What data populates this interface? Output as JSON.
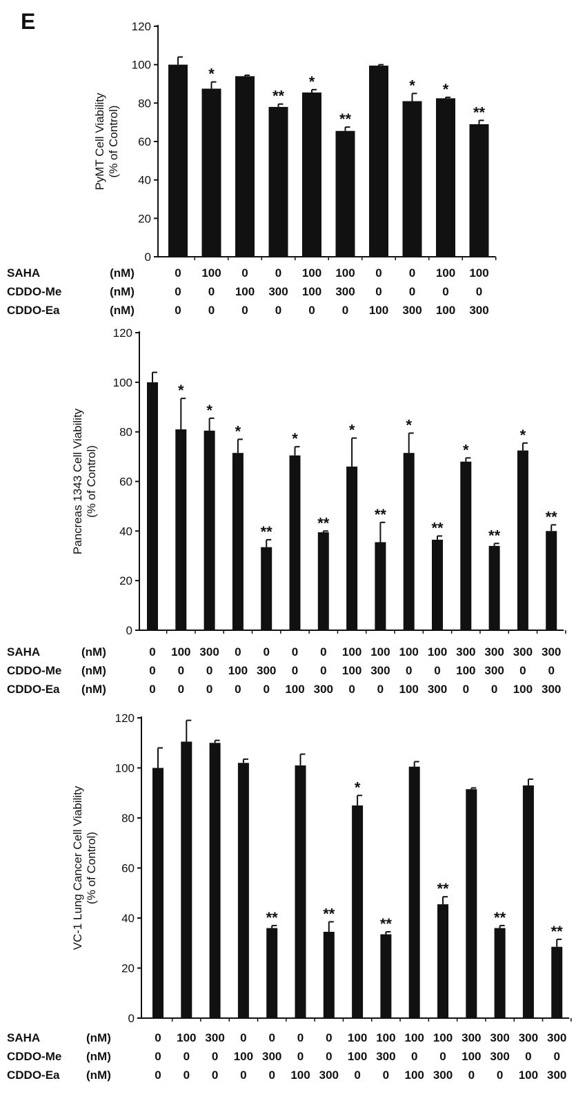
{
  "panel_label": "E",
  "chart_data": [
    {
      "type": "bar",
      "ylabel": "PyMT Cell Viability",
      "ylabel_unit": "(% of Control)",
      "ylim": [
        0,
        120
      ],
      "yticks": [
        "0",
        "20",
        "40",
        "60",
        "80",
        "100",
        "120"
      ],
      "values": [
        100,
        87.5,
        94,
        78,
        85.5,
        65.5,
        99.5,
        81,
        82.5,
        69
      ],
      "errors": [
        4,
        3.5,
        0.5,
        1.5,
        1.5,
        2,
        0.5,
        4,
        0.5,
        2
      ],
      "significance": [
        "",
        "*",
        "",
        "**",
        "*",
        "**",
        "",
        "*",
        "*",
        "**"
      ],
      "conditions": [
        {
          "name": "SAHA",
          "unit": "(nM)",
          "values": [
            "0",
            "100",
            "0",
            "0",
            "100",
            "100",
            "0",
            "0",
            "100",
            "100"
          ]
        },
        {
          "name": "CDDO-Me",
          "unit": "(nM)",
          "values": [
            "0",
            "0",
            "100",
            "300",
            "100",
            "300",
            "0",
            "0",
            "0",
            "0"
          ]
        },
        {
          "name": "CDDO-Ea",
          "unit": "(nM)",
          "values": [
            "0",
            "0",
            "0",
            "0",
            "0",
            "0",
            "100",
            "300",
            "100",
            "300"
          ]
        }
      ]
    },
    {
      "type": "bar",
      "ylabel": "Pancreas 1343 Cell Viability",
      "ylabel_unit": "(% of Control)",
      "ylim": [
        0,
        120
      ],
      "yticks": [
        "0",
        "20",
        "40",
        "60",
        "80",
        "100",
        "120"
      ],
      "values": [
        100,
        81,
        80.5,
        71.5,
        33.5,
        70.5,
        39.5,
        66,
        35.5,
        71.5,
        36.5,
        68,
        34,
        72.5,
        40
      ],
      "errors": [
        4,
        12.5,
        5,
        5.5,
        3,
        3.5,
        0.5,
        11.5,
        8,
        8,
        1.5,
        1.5,
        1,
        3,
        2.5
      ],
      "significance": [
        "",
        "*",
        "*",
        "*",
        "**",
        "*",
        "**",
        "*",
        "**",
        "*",
        "**",
        "*",
        "**",
        "*",
        "**"
      ],
      "conditions": [
        {
          "name": "SAHA",
          "unit": "(nM)",
          "values": [
            "0",
            "100",
            "300",
            "0",
            "0",
            "0",
            "0",
            "100",
            "100",
            "100",
            "100",
            "300",
            "300",
            "300",
            "300"
          ]
        },
        {
          "name": "CDDO-Me",
          "unit": "(nM)",
          "values": [
            "0",
            "0",
            "0",
            "100",
            "300",
            "0",
            "0",
            "100",
            "300",
            "0",
            "0",
            "100",
            "300",
            "0",
            "0"
          ]
        },
        {
          "name": "CDDO-Ea",
          "unit": "(nM)",
          "values": [
            "0",
            "0",
            "0",
            "0",
            "0",
            "100",
            "300",
            "0",
            "0",
            "100",
            "300",
            "0",
            "0",
            "100",
            "300"
          ]
        }
      ]
    },
    {
      "type": "bar",
      "ylabel": "VC-1 Lung Cancer Cell Viability",
      "ylabel_unit": "(% of Control)",
      "ylim": [
        0,
        120
      ],
      "yticks": [
        "0",
        "20",
        "40",
        "60",
        "80",
        "100",
        "120"
      ],
      "values": [
        100,
        110.5,
        110,
        102,
        36,
        101,
        34.5,
        85,
        33.5,
        100.5,
        45.5,
        91.5,
        36,
        93,
        28.5
      ],
      "errors": [
        8,
        8.5,
        1,
        1.5,
        1,
        4.5,
        4,
        4,
        1,
        2,
        3,
        0.5,
        1,
        2.5,
        3
      ],
      "significance": [
        "",
        "",
        "",
        "",
        "**",
        "",
        "**",
        "*",
        "**",
        "",
        "**",
        "",
        "**",
        "",
        "**"
      ],
      "conditions": [
        {
          "name": "SAHA",
          "unit": "(nM)",
          "values": [
            "0",
            "100",
            "300",
            "0",
            "0",
            "0",
            "0",
            "100",
            "100",
            "100",
            "100",
            "300",
            "300",
            "300",
            "300"
          ]
        },
        {
          "name": "CDDO-Me",
          "unit": "(nM)",
          "values": [
            "0",
            "0",
            "0",
            "100",
            "300",
            "0",
            "0",
            "100",
            "300",
            "0",
            "0",
            "100",
            "300",
            "0",
            "0"
          ]
        },
        {
          "name": "CDDO-Ea",
          "unit": "(nM)",
          "values": [
            "0",
            "0",
            "0",
            "0",
            "0",
            "100",
            "300",
            "0",
            "0",
            "100",
            "300",
            "0",
            "0",
            "100",
            "300"
          ]
        }
      ]
    }
  ]
}
